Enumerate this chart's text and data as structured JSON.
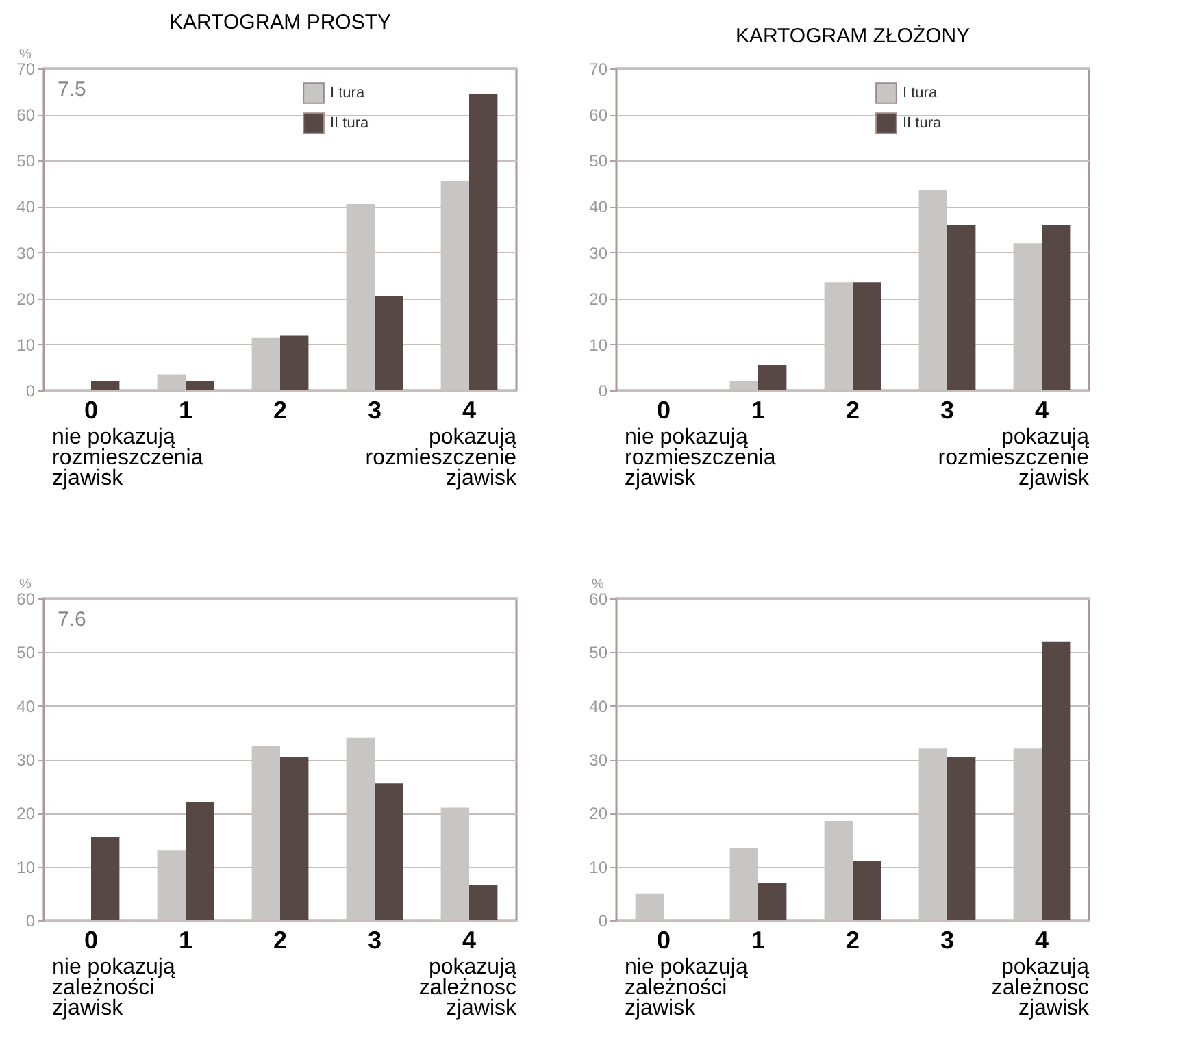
{
  "chart_data": [
    {
      "type": "bar",
      "title": "KARTOGRAM PROSTY",
      "ylabel": "%",
      "categories": [
        "0",
        "1",
        "2",
        "3",
        "4"
      ],
      "series": [
        {
          "name": "I tura",
          "color": "#c8c6c4",
          "values": [
            0,
            3.5,
            11.5,
            40.5,
            45.5
          ]
        },
        {
          "name": "II tura",
          "color": "#574846",
          "values": [
            2,
            2,
            12,
            20.5,
            64.5
          ]
        }
      ],
      "ylim": [
        0,
        70
      ],
      "yticks": [
        0,
        10,
        20,
        30,
        40,
        50,
        60,
        70
      ],
      "grid": "y",
      "legend": "top right",
      "annotations": [
        "7.5",
        "nie pokazują\nrozmieszczenia\nzjawisk",
        "pokazują\nrozmieszczenie\nzjawisk"
      ]
    },
    {
      "type": "bar",
      "title": "KARTOGRAM ZŁOŻONY",
      "categories": [
        "0",
        "1",
        "2",
        "3",
        "4"
      ],
      "series": [
        {
          "name": "I tura",
          "color": "#c8c6c4",
          "values": [
            0,
            2,
            23.5,
            43.5,
            32
          ]
        },
        {
          "name": "II tura",
          "color": "#574846",
          "values": [
            0,
            5.5,
            23.5,
            36,
            36
          ]
        }
      ],
      "ylim": [
        0,
        70
      ],
      "yticks": [
        0,
        10,
        20,
        30,
        40,
        50,
        60,
        70
      ],
      "grid": "y",
      "legend": "top right",
      "annotations": [
        "nie pokazują\nrozmieszczenia\nzjawisk",
        "pokazują\nrozmieszczenie\nzjawisk"
      ]
    },
    {
      "type": "bar",
      "ylabel": "%",
      "categories": [
        "0",
        "1",
        "2",
        "3",
        "4"
      ],
      "series": [
        {
          "color": "#c8c6c4",
          "values": [
            0,
            13,
            32.5,
            34,
            21
          ]
        },
        {
          "color": "#574846",
          "values": [
            15.5,
            22,
            30.5,
            25.5,
            6.5
          ]
        }
      ],
      "ylim": [
        0,
        60
      ],
      "yticks": [
        0,
        10,
        20,
        30,
        40,
        50,
        60
      ],
      "grid": "y",
      "annotations": [
        "7.6",
        "nie pokazują\nzależności\nzjawisk",
        "pokazują\nzależnosc\nzjawisk"
      ]
    },
    {
      "type": "bar",
      "ylabel": "%",
      "categories": [
        "0",
        "1",
        "2",
        "3",
        "4"
      ],
      "series": [
        {
          "color": "#c8c6c4",
          "values": [
            5,
            13.5,
            18.5,
            32,
            32
          ]
        },
        {
          "color": "#574846",
          "values": [
            0,
            7,
            11,
            30.5,
            52
          ]
        }
      ],
      "ylim": [
        0,
        60
      ],
      "yticks": [
        0,
        10,
        20,
        30,
        40,
        50,
        60
      ],
      "grid": "y",
      "annotations": [
        "nie pokazują\nzależności\nzjawisk",
        "pokazują\nzależnosc\nzjawisk"
      ]
    }
  ]
}
